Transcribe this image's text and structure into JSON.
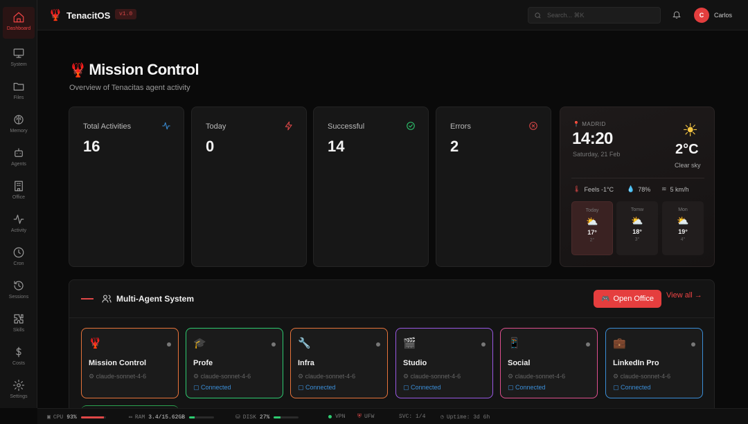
{
  "app": {
    "name": "TenacitOS",
    "version": "v1.0"
  },
  "search": {
    "placeholder": "Search... ⌘K"
  },
  "user": {
    "initial": "C",
    "name": "Carlos"
  },
  "sidebar": {
    "items": [
      {
        "label": "Dashboard",
        "icon": "home-icon",
        "active": true
      },
      {
        "label": "System",
        "icon": "monitor-icon"
      },
      {
        "label": "Files",
        "icon": "folder-icon"
      },
      {
        "label": "Memory",
        "icon": "brain-icon"
      },
      {
        "label": "Agents",
        "icon": "bot-icon"
      },
      {
        "label": "Office",
        "icon": "building-icon"
      },
      {
        "label": "Activity",
        "icon": "activity-icon"
      },
      {
        "label": "Cron",
        "icon": "clock-icon"
      },
      {
        "label": "Sessions",
        "icon": "history-icon"
      },
      {
        "label": "Skills",
        "icon": "puzzle-icon"
      },
      {
        "label": "Costs",
        "icon": "dollar-icon"
      },
      {
        "label": "Settings",
        "icon": "gear-icon"
      }
    ]
  },
  "page": {
    "title": "Mission Control",
    "subtitle": "Overview of Tenacitas agent activity"
  },
  "stats": [
    {
      "label": "Total Activities",
      "value": "16",
      "icon": "activity-icon",
      "color": "#3b8fd9"
    },
    {
      "label": "Today",
      "value": "0",
      "icon": "zap-icon",
      "color": "#e04848"
    },
    {
      "label": "Successful",
      "value": "14",
      "icon": "check-circle-icon",
      "color": "#2ecc71"
    },
    {
      "label": "Errors",
      "value": "2",
      "icon": "x-circle-icon",
      "color": "#e04848"
    }
  ],
  "weather": {
    "city": "MADRID",
    "time": "14:20",
    "date": "Saturday, 21 Feb",
    "temp": "2°C",
    "condition": "Clear sky",
    "feels": "Feels -1°C",
    "humidity": "78%",
    "wind": "5 km/h",
    "forecast": [
      {
        "day": "Today",
        "high": "17°",
        "low": "2°"
      },
      {
        "day": "Tomw",
        "high": "18°",
        "low": "3°"
      },
      {
        "day": "Mon",
        "high": "19°",
        "low": "4°"
      }
    ]
  },
  "agents_panel": {
    "title": "Multi-Agent System",
    "open_office": "Open Office",
    "view_all": "View all →",
    "agents": [
      {
        "name": "Mission Control",
        "model": "claude-sonnet-4-6",
        "status": "",
        "border": "#e8743b",
        "icon": "🦞"
      },
      {
        "name": "Profe",
        "model": "claude-sonnet-4-6",
        "status": "Connected",
        "border": "#2ecc71",
        "icon": "🎓"
      },
      {
        "name": "Infra",
        "model": "claude-sonnet-4-6",
        "status": "Connected",
        "border": "#e8743b",
        "icon": "🔧"
      },
      {
        "name": "Studio",
        "model": "claude-sonnet-4-6",
        "status": "Connected",
        "border": "#9b59e6",
        "icon": "🎬"
      },
      {
        "name": "Social",
        "model": "claude-sonnet-4-6",
        "status": "Connected",
        "border": "#e0508f",
        "icon": "📱"
      },
      {
        "name": "LinkedIn Pro",
        "model": "claude-sonnet-4-6",
        "status": "Connected",
        "border": "#3b8fd9",
        "icon": "💼"
      }
    ]
  },
  "statusbar": {
    "cpu_label": "CPU",
    "cpu": "93%",
    "cpu_level": 0.93,
    "ram_label": "RAM",
    "ram": "3.4/15.62GB",
    "ram_level": 0.22,
    "disk_label": "DISK",
    "disk": "27%",
    "disk_level": 0.27,
    "vpn": "VPN",
    "ufw": "UFW",
    "svc": "SVC: 1/4",
    "uptime": "Uptime: 3d 6h"
  }
}
